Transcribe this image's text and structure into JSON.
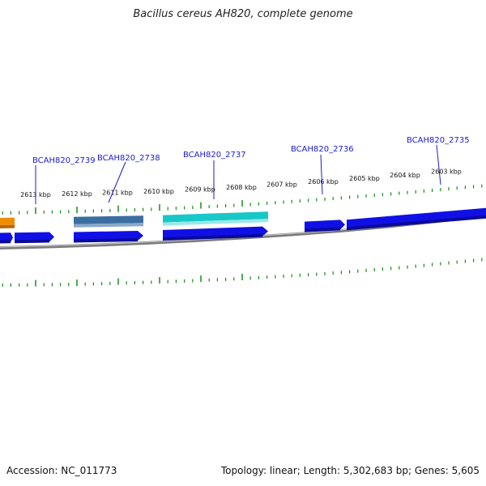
{
  "title": "Bacillus cereus AH820, complete genome",
  "accession": "Accession: NC_011773",
  "topology": "Topology: linear; Length: 5,302,683 bp; Genes: 5,605",
  "colors": {
    "ruler_tick": "#1a8a1a",
    "gene_label": "#1a1ad6",
    "gene_blue": "#1010e6",
    "gene_steel": "#3a6ea0",
    "gene_cyan": "#18c8c8",
    "gene_orange": "#f08c00",
    "backbone": "#7a7a7a"
  },
  "ruler": {
    "unit": "kbp",
    "labels": [
      "2613 kbp",
      "2612 kbp",
      "2611 kbp",
      "2610 kbp",
      "2609 kbp",
      "2608 kbp",
      "2607 kbp",
      "2606 kbp",
      "2605 kbp",
      "2604 kbp",
      "2603 kbp"
    ]
  },
  "genes": [
    {
      "name": "BCAH820_2739"
    },
    {
      "name": "BCAH820_2738"
    },
    {
      "name": "BCAH820_2737"
    },
    {
      "name": "BCAH820_2736"
    },
    {
      "name": "BCAH820_2735"
    }
  ]
}
